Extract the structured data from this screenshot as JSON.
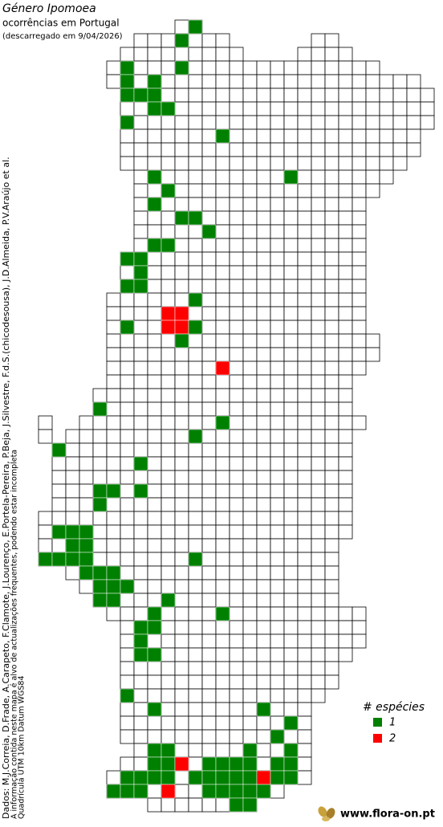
{
  "header": {
    "title": "Género Ipomoea",
    "subtitle": "ocorrências em Portugal",
    "download": "(descarregado em 9/04/2026)"
  },
  "credits": [
    "Dados: M.J.Correia, D.Frade, A.Carapeto, F.Clamote, J.Lourenço, E.Portela-Pereira, P.Beja, J.Silvestre, F.d.S.(chicodesousa), J.D.Almeida, P.V.Araújo et al.",
    "A informação contida neste mapa é alvo de actualizações frequentes, podendo estar incompleta",
    "Quadrícula UTM 10km Datum WGS84"
  ],
  "legend": {
    "title": "# espécies",
    "items": [
      {
        "value": 1,
        "color": "#008000"
      },
      {
        "value": 2,
        "color": "#ff0000"
      }
    ]
  },
  "cells": [
    {
      "col": 11,
      "row": 0,
      "n": 1
    },
    {
      "col": 10,
      "row": 1,
      "n": 1
    },
    {
      "col": 6,
      "row": 3,
      "n": 1
    },
    {
      "col": 10,
      "row": 3,
      "n": 1
    },
    {
      "col": 6,
      "row": 4,
      "n": 1
    },
    {
      "col": 8,
      "row": 4,
      "n": 1
    },
    {
      "col": 6,
      "row": 5,
      "n": 1
    },
    {
      "col": 7,
      "row": 5,
      "n": 1
    },
    {
      "col": 8,
      "row": 5,
      "n": 1
    },
    {
      "col": 8,
      "row": 6,
      "n": 1
    },
    {
      "col": 9,
      "row": 6,
      "n": 1
    },
    {
      "col": 6,
      "row": 7,
      "n": 1
    },
    {
      "col": 13,
      "row": 8,
      "n": 1
    },
    {
      "col": 8,
      "row": 11,
      "n": 1
    },
    {
      "col": 18,
      "row": 11,
      "n": 1
    },
    {
      "col": 9,
      "row": 12,
      "n": 1
    },
    {
      "col": 8,
      "row": 13,
      "n": 1
    },
    {
      "col": 10,
      "row": 14,
      "n": 1
    },
    {
      "col": 11,
      "row": 14,
      "n": 1
    },
    {
      "col": 12,
      "row": 15,
      "n": 1
    },
    {
      "col": 8,
      "row": 16,
      "n": 1
    },
    {
      "col": 9,
      "row": 16,
      "n": 1
    },
    {
      "col": 6,
      "row": 17,
      "n": 1
    },
    {
      "col": 7,
      "row": 17,
      "n": 1
    },
    {
      "col": 7,
      "row": 18,
      "n": 1
    },
    {
      "col": 6,
      "row": 19,
      "n": 1
    },
    {
      "col": 7,
      "row": 19,
      "n": 1
    },
    {
      "col": 11,
      "row": 20,
      "n": 1
    },
    {
      "col": 9,
      "row": 21,
      "n": 2
    },
    {
      "col": 10,
      "row": 21,
      "n": 2
    },
    {
      "col": 9,
      "row": 22,
      "n": 2
    },
    {
      "col": 10,
      "row": 22,
      "n": 2
    },
    {
      "col": 6,
      "row": 22,
      "n": 1
    },
    {
      "col": 11,
      "row": 22,
      "n": 1
    },
    {
      "col": 10,
      "row": 23,
      "n": 1
    },
    {
      "col": 13,
      "row": 25,
      "n": 2
    },
    {
      "col": 4,
      "row": 28,
      "n": 1
    },
    {
      "col": 13,
      "row": 29,
      "n": 1
    },
    {
      "col": 11,
      "row": 30,
      "n": 1
    },
    {
      "col": 1,
      "row": 31,
      "n": 1
    },
    {
      "col": 7,
      "row": 32,
      "n": 1
    },
    {
      "col": 4,
      "row": 34,
      "n": 1
    },
    {
      "col": 5,
      "row": 34,
      "n": 1
    },
    {
      "col": 7,
      "row": 34,
      "n": 1
    },
    {
      "col": 4,
      "row": 35,
      "n": 1
    },
    {
      "col": 1,
      "row": 37,
      "n": 1
    },
    {
      "col": 2,
      "row": 37,
      "n": 1
    },
    {
      "col": 3,
      "row": 37,
      "n": 1
    },
    {
      "col": 2,
      "row": 38,
      "n": 1
    },
    {
      "col": 3,
      "row": 38,
      "n": 1
    },
    {
      "col": 0,
      "row": 39,
      "n": 1
    },
    {
      "col": 1,
      "row": 39,
      "n": 1
    },
    {
      "col": 2,
      "row": 39,
      "n": 1
    },
    {
      "col": 3,
      "row": 39,
      "n": 1
    },
    {
      "col": 11,
      "row": 39,
      "n": 1
    },
    {
      "col": 3,
      "row": 40,
      "n": 1
    },
    {
      "col": 4,
      "row": 40,
      "n": 1
    },
    {
      "col": 5,
      "row": 40,
      "n": 1
    },
    {
      "col": 4,
      "row": 41,
      "n": 1
    },
    {
      "col": 5,
      "row": 41,
      "n": 1
    },
    {
      "col": 6,
      "row": 41,
      "n": 1
    },
    {
      "col": 4,
      "row": 42,
      "n": 1
    },
    {
      "col": 5,
      "row": 42,
      "n": 1
    },
    {
      "col": 9,
      "row": 42,
      "n": 1
    },
    {
      "col": 8,
      "row": 43,
      "n": 1
    },
    {
      "col": 13,
      "row": 43,
      "n": 1
    },
    {
      "col": 7,
      "row": 44,
      "n": 1
    },
    {
      "col": 8,
      "row": 44,
      "n": 1
    },
    {
      "col": 7,
      "row": 45,
      "n": 1
    },
    {
      "col": 7,
      "row": 46,
      "n": 1
    },
    {
      "col": 8,
      "row": 46,
      "n": 1
    },
    {
      "col": 6,
      "row": 49,
      "n": 1
    },
    {
      "col": 8,
      "row": 50,
      "n": 1
    },
    {
      "col": 16,
      "row": 50,
      "n": 1
    },
    {
      "col": 18,
      "row": 51,
      "n": 1
    },
    {
      "col": 17,
      "row": 52,
      "n": 1
    },
    {
      "col": 8,
      "row": 53,
      "n": 1
    },
    {
      "col": 9,
      "row": 53,
      "n": 1
    },
    {
      "col": 15,
      "row": 53,
      "n": 1
    },
    {
      "col": 18,
      "row": 53,
      "n": 1
    },
    {
      "col": 8,
      "row": 54,
      "n": 1
    },
    {
      "col": 9,
      "row": 54,
      "n": 1
    },
    {
      "col": 10,
      "row": 54,
      "n": 2
    },
    {
      "col": 12,
      "row": 54,
      "n": 1
    },
    {
      "col": 13,
      "row": 54,
      "n": 1
    },
    {
      "col": 14,
      "row": 54,
      "n": 1
    },
    {
      "col": 15,
      "row": 54,
      "n": 1
    },
    {
      "col": 17,
      "row": 54,
      "n": 1
    },
    {
      "col": 18,
      "row": 54,
      "n": 1
    },
    {
      "col": 6,
      "row": 55,
      "n": 1
    },
    {
      "col": 7,
      "row": 55,
      "n": 1
    },
    {
      "col": 8,
      "row": 55,
      "n": 1
    },
    {
      "col": 9,
      "row": 55,
      "n": 1
    },
    {
      "col": 11,
      "row": 55,
      "n": 1
    },
    {
      "col": 12,
      "row": 55,
      "n": 1
    },
    {
      "col": 13,
      "row": 55,
      "n": 1
    },
    {
      "col": 14,
      "row": 55,
      "n": 1
    },
    {
      "col": 15,
      "row": 55,
      "n": 1
    },
    {
      "col": 16,
      "row": 55,
      "n": 2
    },
    {
      "col": 17,
      "row": 55,
      "n": 1
    },
    {
      "col": 18,
      "row": 55,
      "n": 1
    },
    {
      "col": 5,
      "row": 56,
      "n": 1
    },
    {
      "col": 6,
      "row": 56,
      "n": 1
    },
    {
      "col": 7,
      "row": 56,
      "n": 1
    },
    {
      "col": 9,
      "row": 56,
      "n": 2
    },
    {
      "col": 12,
      "row": 56,
      "n": 1
    },
    {
      "col": 13,
      "row": 56,
      "n": 1
    },
    {
      "col": 14,
      "row": 56,
      "n": 1
    },
    {
      "col": 15,
      "row": 56,
      "n": 1
    },
    {
      "col": 16,
      "row": 56,
      "n": 1
    },
    {
      "col": 14,
      "row": 57,
      "n": 1
    },
    {
      "col": 15,
      "row": 57,
      "n": 1
    }
  ],
  "footer": "www.flora-on.pt"
}
